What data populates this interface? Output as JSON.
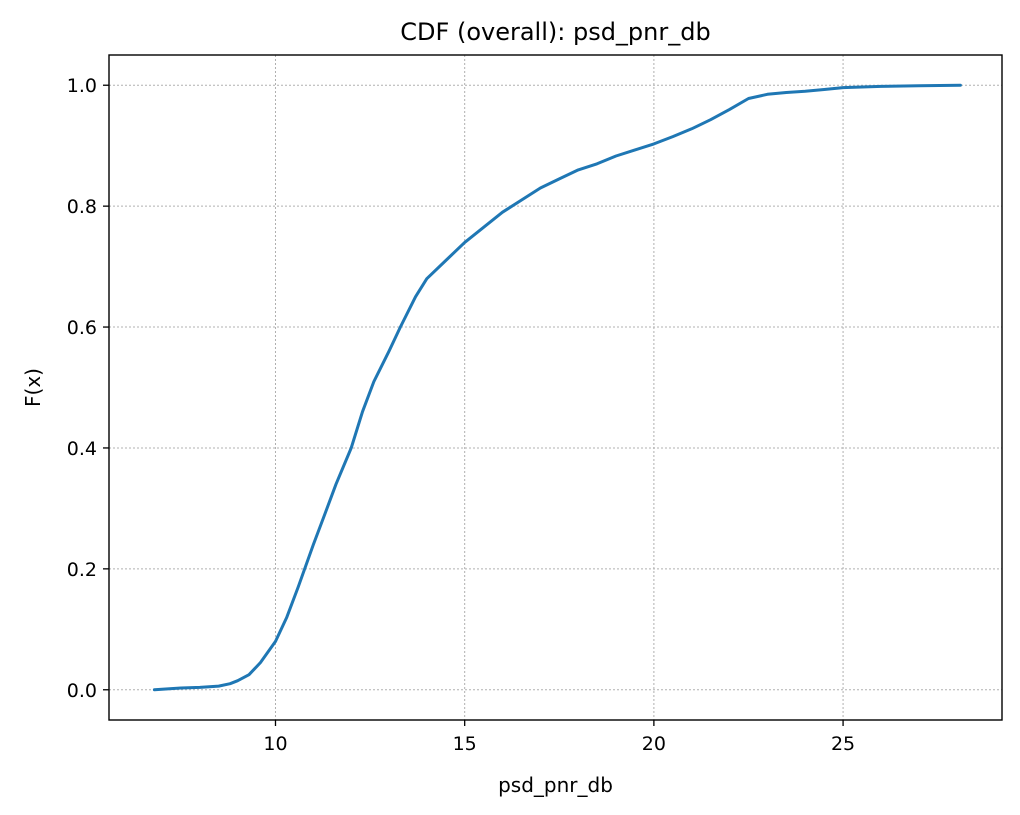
{
  "chart_data": {
    "type": "line",
    "title": "CDF (overall): psd_pnr_db",
    "xlabel": "psd_pnr_db",
    "ylabel": "F(x)",
    "xlim": [
      5.6,
      29.2
    ],
    "ylim": [
      -0.05,
      1.05
    ],
    "xticks": [
      10,
      15,
      20,
      25
    ],
    "xtick_labels": [
      "10",
      "15",
      "20",
      "25"
    ],
    "yticks": [
      0.0,
      0.2,
      0.4,
      0.6,
      0.8,
      1.0
    ],
    "ytick_labels": [
      "0.0",
      "0.2",
      "0.4",
      "0.6",
      "0.8",
      "1.0"
    ],
    "grid": true,
    "series": [
      {
        "color": "#1f77b4",
        "x": [
          6.8,
          7.0,
          7.5,
          8.0,
          8.5,
          8.8,
          9.0,
          9.3,
          9.6,
          10.0,
          10.3,
          10.6,
          11.0,
          11.3,
          11.6,
          12.0,
          12.3,
          12.6,
          13.0,
          13.3,
          13.7,
          14.0,
          14.5,
          15.0,
          15.5,
          16.0,
          16.5,
          17.0,
          17.5,
          18.0,
          18.5,
          19.0,
          19.5,
          20.0,
          20.5,
          21.0,
          21.5,
          22.0,
          22.5,
          23.0,
          23.5,
          24.0,
          24.5,
          25.0,
          26.0,
          27.0,
          28.1
        ],
        "y": [
          0.0,
          0.001,
          0.003,
          0.004,
          0.006,
          0.01,
          0.015,
          0.025,
          0.045,
          0.08,
          0.12,
          0.17,
          0.24,
          0.29,
          0.34,
          0.4,
          0.46,
          0.51,
          0.56,
          0.6,
          0.65,
          0.68,
          0.71,
          0.74,
          0.765,
          0.79,
          0.81,
          0.83,
          0.845,
          0.86,
          0.87,
          0.883,
          0.893,
          0.903,
          0.915,
          0.928,
          0.943,
          0.96,
          0.978,
          0.985,
          0.988,
          0.99,
          0.993,
          0.996,
          0.998,
          0.999,
          1.0
        ]
      }
    ]
  }
}
